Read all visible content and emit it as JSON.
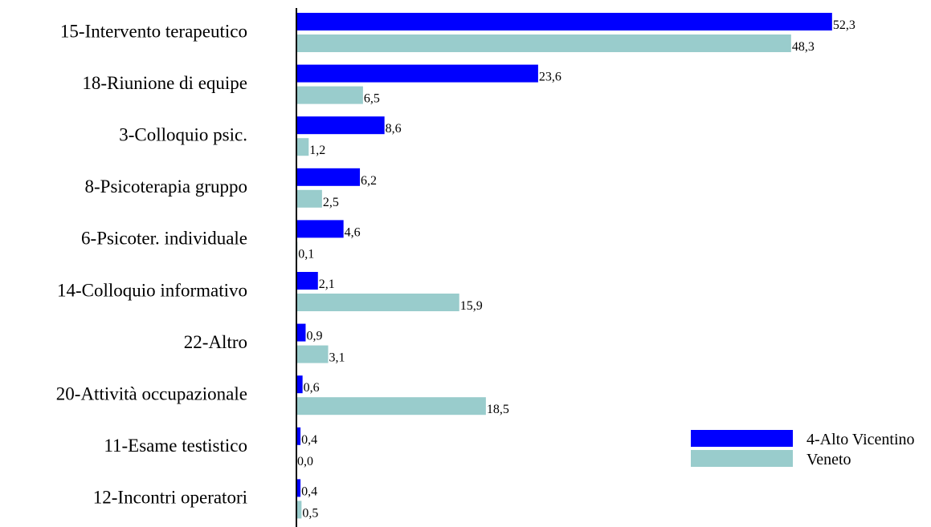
{
  "chart_data": {
    "type": "bar",
    "orientation": "horizontal",
    "title": "",
    "xlabel": "",
    "ylabel": "",
    "xlim": [
      0,
      55
    ],
    "grid": false,
    "legend_position": "bottom-right",
    "categories": [
      "15-Intervento terapeutico",
      "18-Riunione di equipe",
      "3-Colloquio psic.",
      "8-Psicoterapia gruppo",
      "6-Psicoter. individuale",
      "14-Colloquio informativo",
      "22-Altro",
      "20-Attività occupazionale",
      "11-Esame testistico",
      "12-Incontri operatori"
    ],
    "series": [
      {
        "name": "4-Alto Vicentino",
        "color": "#0000ff",
        "values": [
          52.3,
          23.6,
          8.6,
          6.2,
          4.6,
          2.1,
          0.9,
          0.6,
          0.4,
          0.4
        ],
        "labels": [
          "52,3",
          "23,6",
          "8,6",
          "6,2",
          "4,6",
          "2,1",
          "0,9",
          "0,6",
          "0,4",
          "0,4"
        ]
      },
      {
        "name": "Veneto",
        "color": "#99cccc",
        "values": [
          48.3,
          6.5,
          1.2,
          2.5,
          0.1,
          15.9,
          3.1,
          18.5,
          0.0,
          0.5
        ],
        "labels": [
          "48,3",
          "6,5",
          "1,2",
          "2,5",
          "0,1",
          "15,9",
          "3,1",
          "18,5",
          "0,0",
          "0,5"
        ]
      }
    ]
  }
}
